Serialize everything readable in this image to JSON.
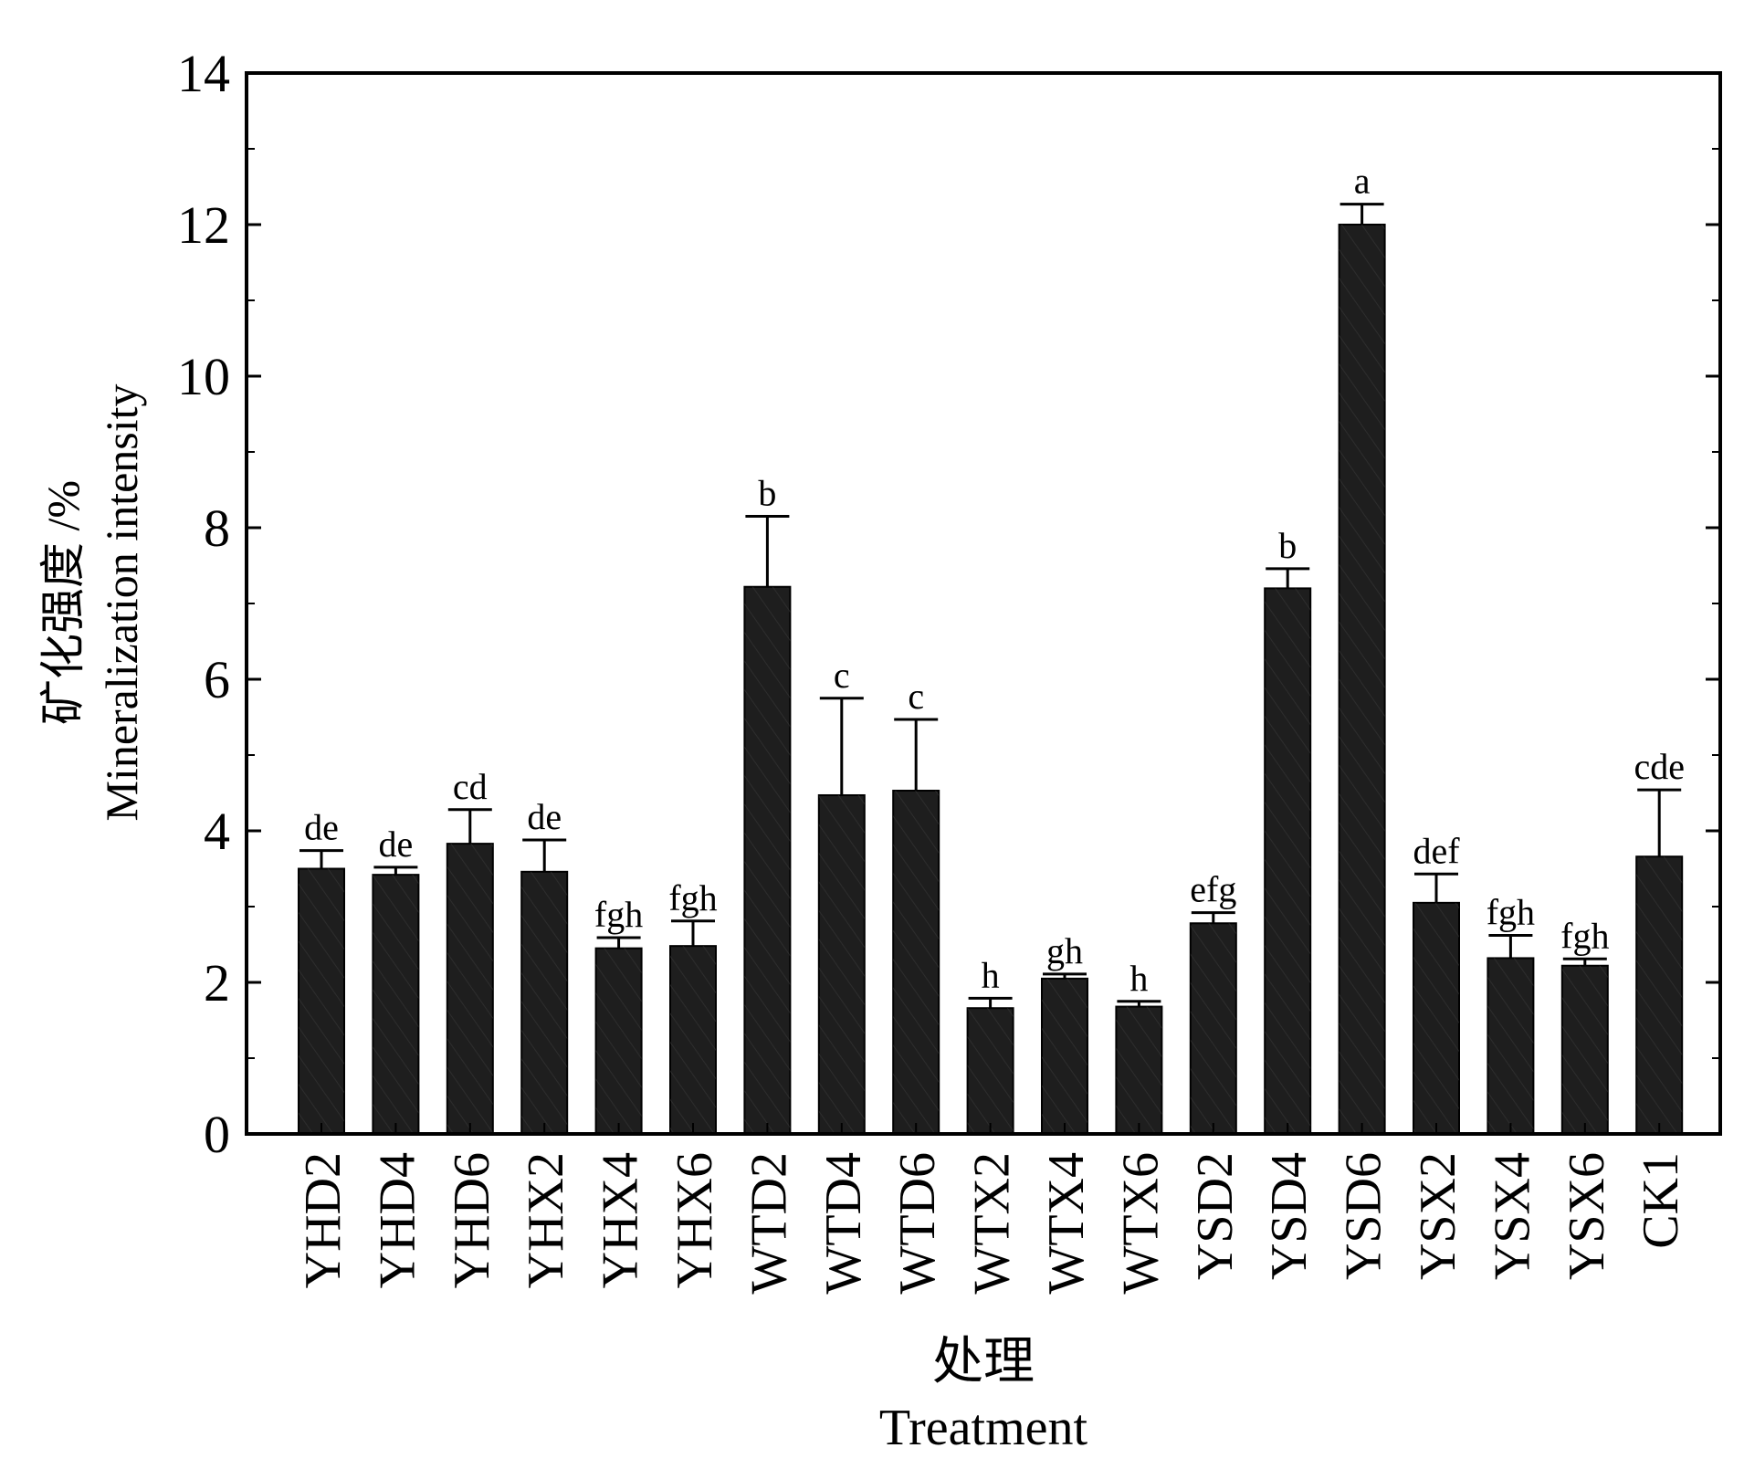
{
  "chart_data": {
    "type": "bar",
    "xlabel_zh": "处理",
    "xlabel_en": "Treatment",
    "ylabel_zh": "矿化强度 /%",
    "ylabel_en": "Mineralization intensity",
    "ylim": [
      0,
      14
    ],
    "yticks": [
      "0",
      "2",
      "4",
      "6",
      "8",
      "10",
      "12",
      "14"
    ],
    "categories": [
      "YHD2",
      "YHD4",
      "YHD6",
      "YHX2",
      "YHX4",
      "YHX6",
      "WTD2",
      "WTD4",
      "WTD6",
      "WTX2",
      "WTX4",
      "WTX6",
      "YSD2",
      "YSD4",
      "YSD6",
      "YSX2",
      "YSX4",
      "YSX6",
      "CK1"
    ],
    "values": [
      3.5,
      3.42,
      3.83,
      3.46,
      2.45,
      2.48,
      7.22,
      4.47,
      4.53,
      1.66,
      2.05,
      1.68,
      2.78,
      7.2,
      12.0,
      3.05,
      2.32,
      2.22,
      3.66
    ],
    "errors": [
      0.24,
      0.1,
      0.45,
      0.42,
      0.14,
      0.33,
      0.93,
      1.28,
      0.94,
      0.13,
      0.06,
      0.07,
      0.14,
      0.26,
      0.27,
      0.38,
      0.3,
      0.09,
      0.88
    ],
    "significance": [
      "de",
      "de",
      "cd",
      "de",
      "fgh",
      "fgh",
      "b",
      "c",
      "c",
      "h",
      "gh",
      "h",
      "efg",
      "b",
      "a",
      "def",
      "fgh",
      "fgh",
      "cde"
    ],
    "bar_color": "#1e1e1e",
    "grid": false
  }
}
